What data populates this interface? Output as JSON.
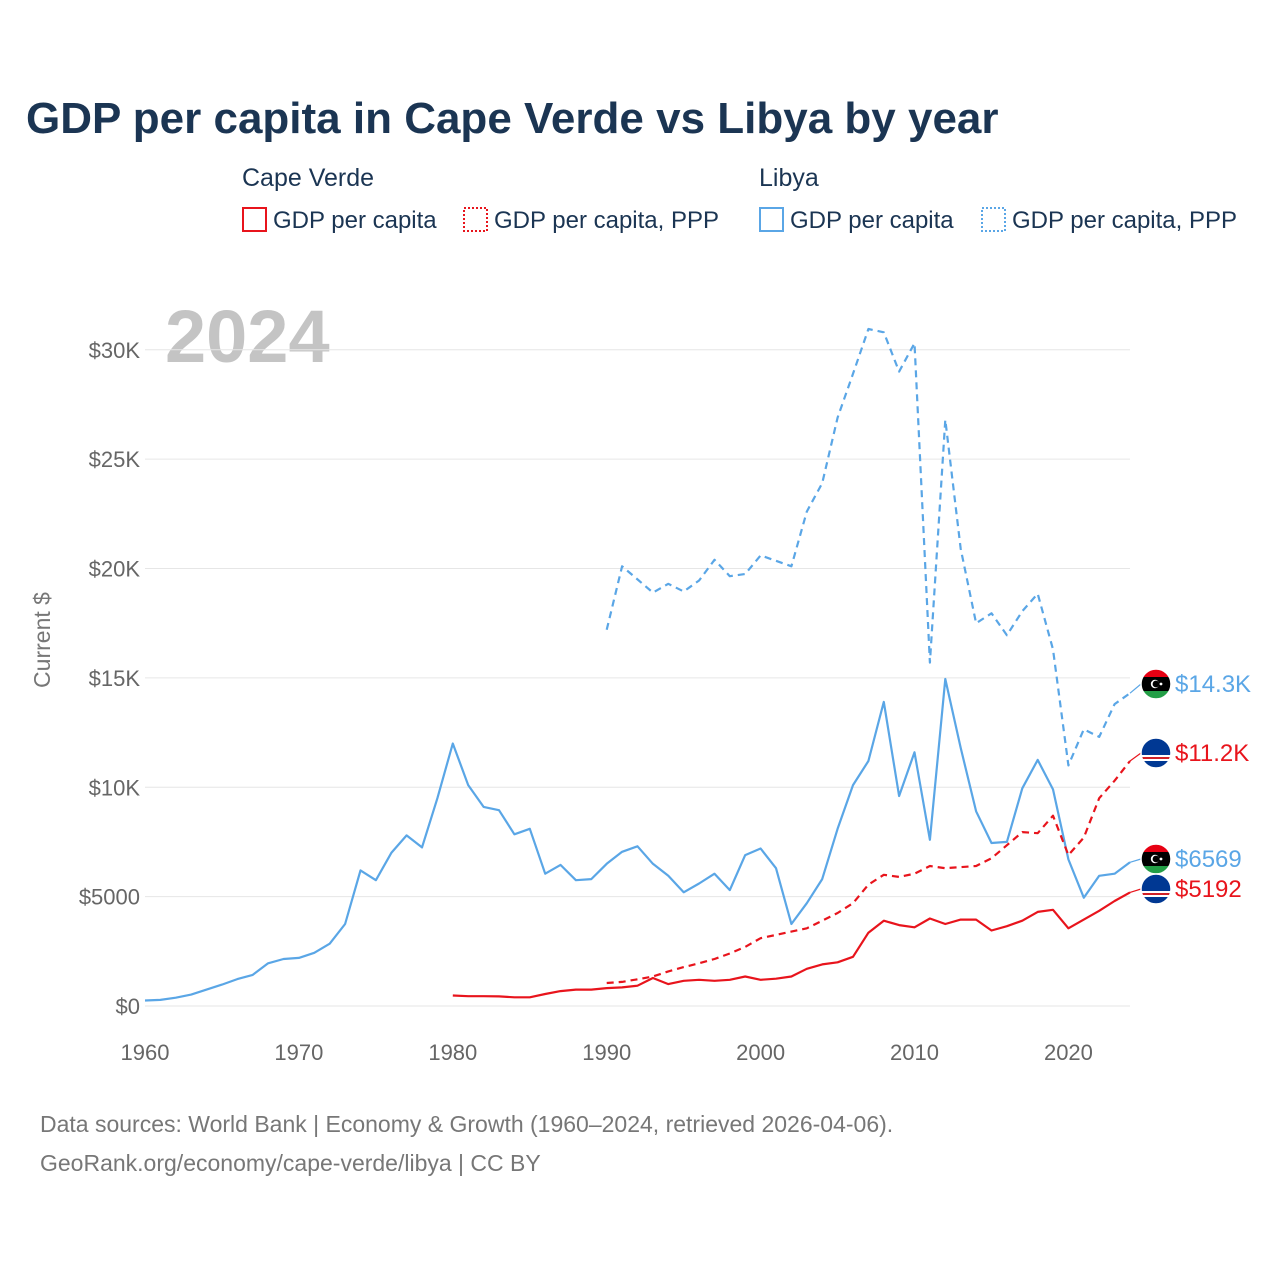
{
  "title": "GDP per capita in Cape Verde vs Libya by year",
  "year_label": "2024",
  "legend": {
    "groups": [
      {
        "name": "Cape Verde",
        "items": [
          {
            "label": "GDP per capita",
            "style": "solid",
            "color": "#e8141c"
          },
          {
            "label": "GDP per capita, PPP",
            "style": "dotted",
            "color": "#e8141c"
          }
        ]
      },
      {
        "name": "Libya",
        "items": [
          {
            "label": "GDP per capita",
            "style": "solid",
            "color": "#5aa6e6"
          },
          {
            "label": "GDP per capita, PPP",
            "style": "dotted",
            "color": "#5aa6e6"
          }
        ]
      }
    ]
  },
  "source": {
    "line1": "Data sources: World Bank | Economy & Growth (1960–2024, retrieved 2026-04-06).",
    "line2": "GeoRank.org/economy/cape-verde/libya | CC BY"
  },
  "colors": {
    "cape_verde": "#e8141c",
    "libya": "#5aa6e6"
  },
  "icons": {
    "libya_flag": "libya-flag-icon",
    "cape_verde_flag": "cape-verde-flag-icon"
  },
  "chart_data": {
    "type": "line",
    "ylabel": "Current $",
    "xlabel": "",
    "xlim": [
      1960,
      2024
    ],
    "ylim": [
      0,
      32000
    ],
    "x_ticks": [
      1960,
      1970,
      1980,
      1990,
      2000,
      2010,
      2020
    ],
    "y_ticks": [
      {
        "value": 0,
        "label": "$0"
      },
      {
        "value": 5000,
        "label": "$5000"
      },
      {
        "value": 10000,
        "label": "$10K"
      },
      {
        "value": 15000,
        "label": "$15K"
      },
      {
        "value": 20000,
        "label": "$20K"
      },
      {
        "value": 25000,
        "label": "$25K"
      },
      {
        "value": 30000,
        "label": "$30K"
      }
    ],
    "grid": true,
    "series": [
      {
        "name": "Libya GDP per capita",
        "country": "Libya",
        "style": "solid",
        "color": "#5aa6e6",
        "end_label": "$6569",
        "flag": "libya",
        "x": [
          1960,
          1961,
          1962,
          1963,
          1964,
          1965,
          1966,
          1967,
          1968,
          1969,
          1970,
          1971,
          1972,
          1973,
          1974,
          1975,
          1976,
          1977,
          1978,
          1979,
          1980,
          1981,
          1982,
          1983,
          1984,
          1985,
          1986,
          1987,
          1988,
          1989,
          1990,
          1991,
          1992,
          1993,
          1994,
          1995,
          1996,
          1997,
          1998,
          1999,
          2000,
          2001,
          2002,
          2003,
          2004,
          2005,
          2006,
          2007,
          2008,
          2009,
          2010,
          2011,
          2012,
          2013,
          2014,
          2015,
          2016,
          2017,
          2018,
          2019,
          2020,
          2021,
          2022,
          2023,
          2024
        ],
        "values": [
          250,
          280,
          380,
          520,
          750,
          980,
          1230,
          1420,
          1950,
          2150,
          2200,
          2430,
          2850,
          3750,
          6200,
          5750,
          7000,
          7800,
          7250,
          9500,
          12000,
          10100,
          9100,
          8950,
          7850,
          8100,
          6050,
          6450,
          5750,
          5800,
          6500,
          7050,
          7300,
          6500,
          5950,
          5200,
          5600,
          6050,
          5300,
          6900,
          7200,
          6300,
          3750,
          4700,
          5800,
          8100,
          10100,
          11200,
          13900,
          9600,
          11600,
          7600,
          14950,
          11800,
          8900,
          7450,
          7500,
          9950,
          11250,
          9900,
          6700,
          4950,
          5950,
          6050,
          6569
        ]
      },
      {
        "name": "Libya GDP per capita, PPP",
        "country": "Libya",
        "style": "dotted",
        "color": "#5aa6e6",
        "end_label": "$14.3K",
        "flag": "libya",
        "x": [
          1990,
          1991,
          1992,
          1993,
          1994,
          1995,
          1996,
          1997,
          1998,
          1999,
          2000,
          2001,
          2002,
          2003,
          2004,
          2005,
          2006,
          2007,
          2008,
          2009,
          2010,
          2011,
          2012,
          2013,
          2014,
          2015,
          2016,
          2017,
          2018,
          2019,
          2020,
          2021,
          2022,
          2023,
          2024
        ],
        "values": [
          17200,
          20100,
          19500,
          18900,
          19300,
          18950,
          19450,
          20400,
          19650,
          19750,
          20600,
          20350,
          20100,
          22600,
          23900,
          26900,
          28900,
          30950,
          30800,
          29000,
          30300,
          15700,
          26800,
          20900,
          17500,
          17950,
          16950,
          18050,
          18850,
          16300,
          11000,
          12650,
          12300,
          13800,
          14300
        ]
      },
      {
        "name": "Cape Verde GDP per capita",
        "country": "Cape Verde",
        "style": "solid",
        "color": "#e8141c",
        "end_label": "$5192",
        "flag": "cape-verde",
        "x": [
          1980,
          1981,
          1982,
          1983,
          1984,
          1985,
          1986,
          1987,
          1988,
          1989,
          1990,
          1991,
          1992,
          1993,
          1994,
          1995,
          1996,
          1997,
          1998,
          1999,
          2000,
          2001,
          2002,
          2003,
          2004,
          2005,
          2006,
          2007,
          2008,
          2009,
          2010,
          2011,
          2012,
          2013,
          2014,
          2015,
          2016,
          2017,
          2018,
          2019,
          2020,
          2021,
          2022,
          2023,
          2024
        ],
        "values": [
          480,
          450,
          450,
          440,
          400,
          400,
          550,
          680,
          750,
          750,
          820,
          850,
          930,
          1280,
          1000,
          1150,
          1200,
          1150,
          1200,
          1350,
          1200,
          1250,
          1350,
          1700,
          1900,
          2000,
          2250,
          3350,
          3900,
          3700,
          3600,
          4000,
          3750,
          3950,
          3950,
          3450,
          3650,
          3900,
          4300,
          4400,
          3550,
          3950,
          4350,
          4800,
          5192
        ]
      },
      {
        "name": "Cape Verde GDP per capita, PPP",
        "country": "Cape Verde",
        "style": "dotted",
        "color": "#e8141c",
        "end_label": "$11.2K",
        "flag": "cape-verde",
        "x": [
          1990,
          1991,
          1992,
          1993,
          1994,
          1995,
          1996,
          1997,
          1998,
          1999,
          2000,
          2001,
          2002,
          2003,
          2004,
          2005,
          2006,
          2007,
          2008,
          2009,
          2010,
          2011,
          2012,
          2013,
          2014,
          2015,
          2016,
          2017,
          2018,
          2019,
          2020,
          2021,
          2022,
          2023,
          2024
        ],
        "values": [
          1050,
          1100,
          1220,
          1350,
          1580,
          1780,
          1950,
          2150,
          2400,
          2700,
          3100,
          3250,
          3400,
          3550,
          3900,
          4250,
          4700,
          5550,
          6000,
          5900,
          6050,
          6400,
          6300,
          6350,
          6400,
          6750,
          7350,
          7950,
          7900,
          8700,
          6900,
          7700,
          9500,
          10300,
          11200
        ]
      }
    ]
  }
}
